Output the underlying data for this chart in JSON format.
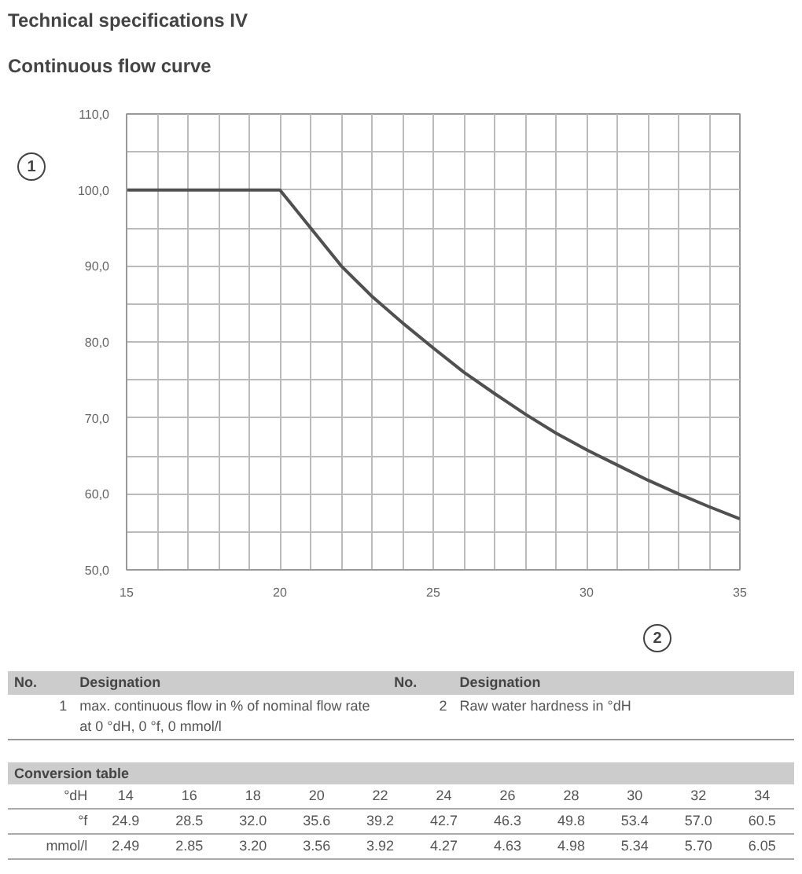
{
  "chart_data": {
    "type": "line",
    "title": "Technical specifications IV",
    "subtitle": "Continuous flow curve",
    "xlabel": "2",
    "ylabel": "1",
    "x": [
      15,
      16,
      17,
      18,
      19,
      20,
      21,
      22,
      23,
      24,
      25,
      26,
      27,
      28,
      29,
      30,
      31,
      32,
      33,
      34,
      35
    ],
    "series": [
      {
        "color": "#505050",
        "values": [
          100,
          100,
          100,
          100,
          100,
          100,
          95,
          90,
          86,
          82.5,
          79.2,
          76,
          73.2,
          70.5,
          68,
          65.8,
          63.8,
          61.8,
          60,
          58.3,
          56.7
        ]
      }
    ],
    "xlim": [
      15,
      35
    ],
    "ylim": [
      50,
      110
    ],
    "xticks": [
      15,
      {
        "value": 16,
        "label": null
      },
      {
        "value": 17,
        "label": null
      },
      {
        "value": 18,
        "label": null
      },
      {
        "value": 19,
        "label": null
      },
      20,
      {
        "value": 21,
        "label": null
      },
      {
        "value": 22,
        "label": null
      },
      {
        "value": 23,
        "label": null
      },
      {
        "value": 24,
        "label": null
      },
      25,
      {
        "value": 26,
        "label": null
      },
      {
        "value": 27,
        "label": null
      },
      {
        "value": 28,
        "label": null
      },
      {
        "value": 29,
        "label": null
      },
      30,
      {
        "value": 31,
        "label": null
      },
      {
        "value": 32,
        "label": null
      },
      {
        "value": 33,
        "label": null
      },
      {
        "value": 34,
        "label": null
      },
      35
    ],
    "yticks": [
      {
        "value": 50,
        "label": "50,0"
      },
      {
        "value": 55,
        "label": null
      },
      {
        "value": 60,
        "label": "60,0"
      },
      {
        "value": 65,
        "label": null
      },
      {
        "value": 70,
        "label": "70,0"
      },
      {
        "value": 75,
        "label": null
      },
      {
        "value": 80,
        "label": "80,0"
      },
      {
        "value": 85,
        "label": null
      },
      {
        "value": 90,
        "label": "90,0"
      },
      {
        "value": 95,
        "label": null
      },
      {
        "value": 100,
        "label": "100,0"
      },
      {
        "value": 105,
        "label": null
      },
      {
        "value": 110,
        "label": "110,0"
      }
    ],
    "grid": true,
    "marker": "none",
    "line_style": "solid",
    "annotations": [
      "No.",
      "Designation",
      "No.",
      "Designation",
      "1",
      "max. continuous flow in % of nominal flow rate at 0 °dH, 0 °f, 0 mmol/l",
      "2",
      "Raw water hardness in °dH",
      "Conversion table",
      "°dH",
      "14",
      "16",
      "18",
      "20",
      "22",
      "24",
      "26",
      "28",
      "30",
      "32",
      "34",
      "°f",
      "24.9",
      "28.5",
      "32.0",
      "35.6",
      "39.2",
      "42.7",
      "46.3",
      "49.8",
      "53.4",
      "57.0",
      "60.5",
      "mmol/l",
      "2.49",
      "2.85",
      "3.20",
      "3.56",
      "3.92",
      "4.27",
      "4.63",
      "4.98",
      "5.34",
      "5.70",
      "6.05"
    ]
  }
}
